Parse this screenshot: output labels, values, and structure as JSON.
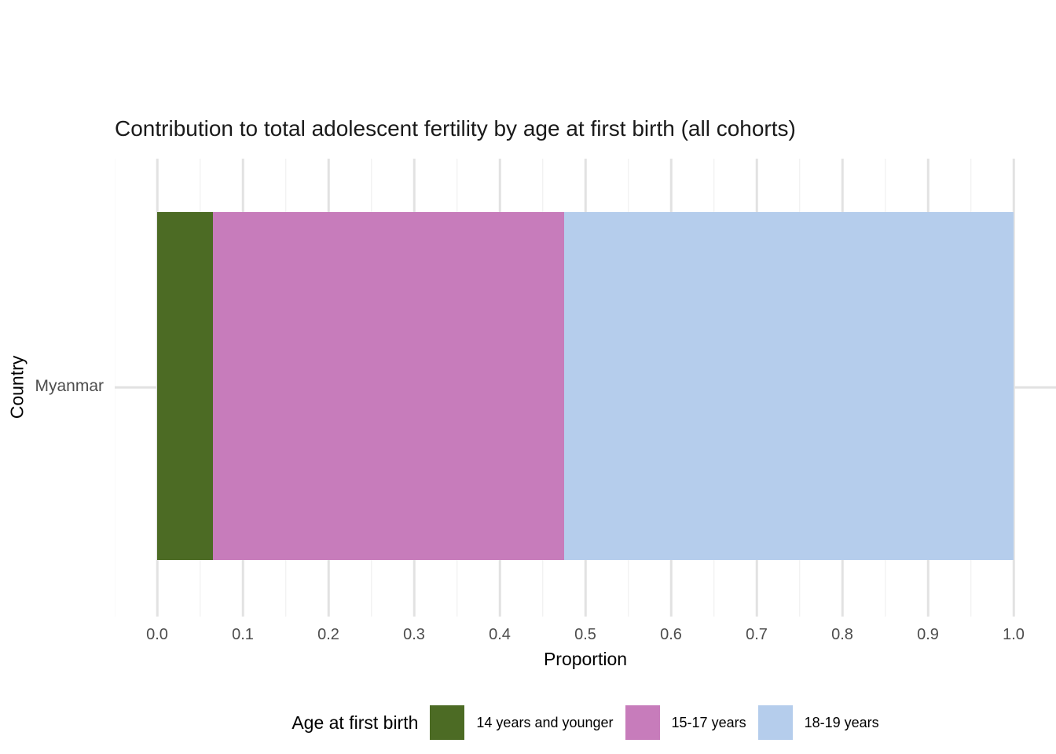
{
  "chart_data": {
    "type": "bar",
    "orientation": "horizontal",
    "stacked": true,
    "title": "Contribution to total adolescent fertility by age at first birth (all cohorts)",
    "xlabel": "Proportion",
    "ylabel": "Country",
    "categories": [
      "Myanmar"
    ],
    "series": [
      {
        "name": "14 years and younger",
        "color": "#4C6B24",
        "values": [
          0.065
        ]
      },
      {
        "name": "15-17 years",
        "color": "#C77CBB",
        "values": [
          0.41
        ]
      },
      {
        "name": "18-19 years",
        "color": "#B5CDEC",
        "values": [
          0.525
        ]
      }
    ],
    "xlim": [
      0.0,
      1.0
    ],
    "x_ticks": [
      "0.0",
      "0.1",
      "0.2",
      "0.3",
      "0.4",
      "0.5",
      "0.6",
      "0.7",
      "0.8",
      "0.9",
      "1.0"
    ],
    "x_minor_step": 0.05,
    "grid": "major and minor vertical gridlines, major horizontal gridline at category",
    "legend": {
      "title": "Age at first birth",
      "position": "bottom"
    },
    "colors": {
      "background": "#FFFFFF",
      "grid_major": "#E2E2E2",
      "grid_minor": "#EDEDED",
      "tick_label": "#4D4D4D",
      "text": "#1A1A1A"
    }
  }
}
